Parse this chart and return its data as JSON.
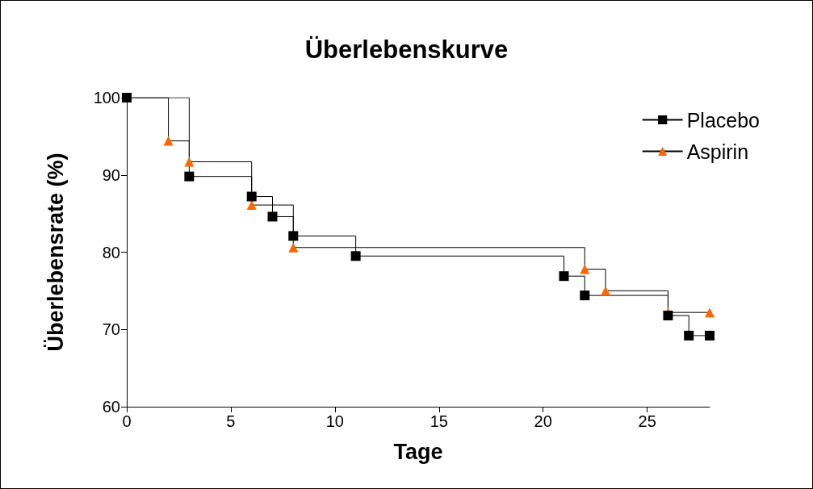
{
  "chart_data": {
    "type": "step",
    "title": "Überlebenskurve",
    "xlabel": "Tage",
    "ylabel": "Überlebensrate (%)",
    "xlim": [
      0,
      28
    ],
    "xticks": [
      0,
      5,
      10,
      15,
      20,
      25
    ],
    "ylim": [
      60,
      100
    ],
    "yticks": [
      60,
      70,
      80,
      90,
      100
    ],
    "grid": false,
    "legend": "top right",
    "line_style": "solid",
    "series": [
      {
        "name": "Placebo",
        "color": "#000000",
        "marker": "square",
        "x": [
          0,
          3,
          6,
          7,
          8,
          11,
          21,
          22,
          26,
          27,
          28
        ],
        "values": [
          100,
          89.8,
          87.2,
          84.6,
          82.1,
          79.5,
          76.9,
          74.4,
          71.8,
          69.2,
          69.2
        ]
      },
      {
        "name": "Aspirin",
        "color": "#ff6600",
        "marker": "triangle",
        "x": [
          0,
          2,
          3,
          6,
          8,
          22,
          23,
          26,
          28
        ],
        "values": [
          100,
          94.4,
          91.7,
          86.1,
          80.6,
          77.8,
          75.0,
          72.2,
          72.2
        ]
      }
    ]
  }
}
